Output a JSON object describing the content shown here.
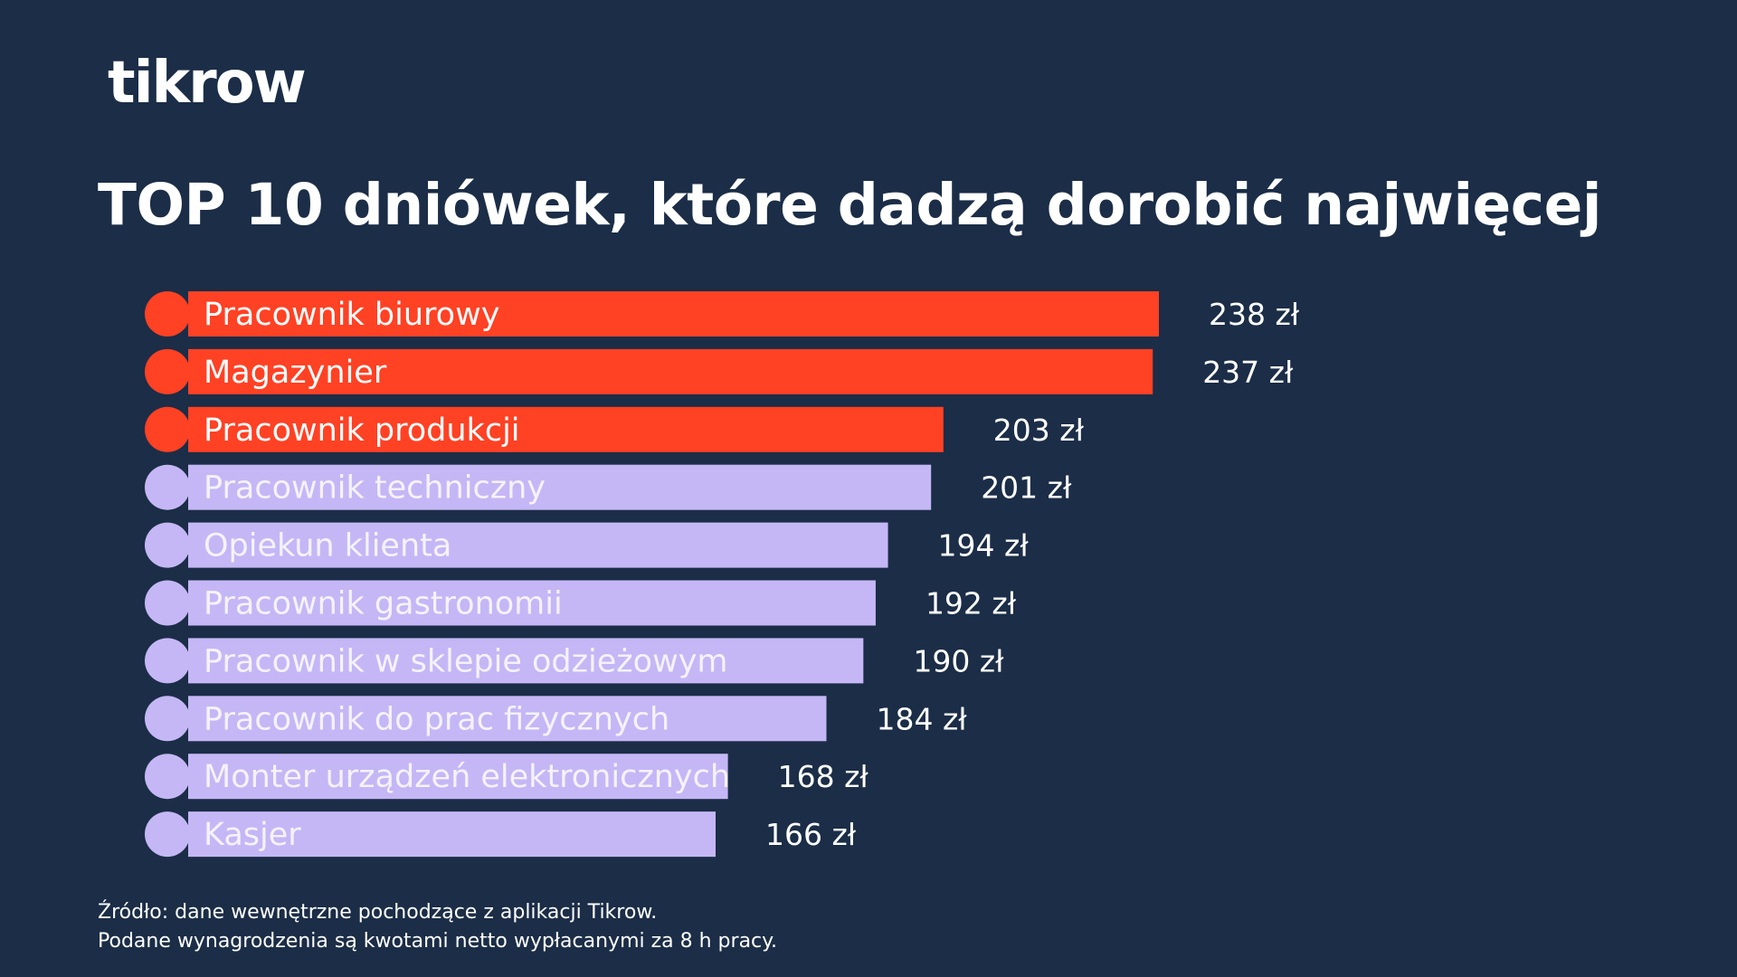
{
  "brand": {
    "logo_text": "tikrow"
  },
  "chart_data": {
    "type": "bar",
    "orientation": "horizontal",
    "title": "TOP 10 dniówek, które dadzą dorobić najwięcej",
    "categories": [
      "Pracownik biurowy",
      "Magazynier",
      "Pracownik produkcji",
      "Pracownik techniczny",
      "Opiekun klienta",
      "Pracownik gastronomii",
      "Pracownik w sklepie odzieżowym",
      "Pracownik do prac fizycznych",
      "Monter urządzeń elektronicznych",
      "Kasjer"
    ],
    "values": [
      238,
      237,
      203,
      201,
      194,
      192,
      190,
      184,
      168,
      166
    ],
    "value_labels": [
      "238 zł",
      "237 zł",
      "203 zł",
      "201 zł",
      "194 zł",
      "192 zł",
      "190 zł",
      "184 zł",
      "168 zł",
      "166 zł"
    ],
    "highlight_top_n": 3,
    "colors": {
      "highlight": "#ff4124",
      "default": "#c5b7f5",
      "highlight_label": "#ffffff",
      "default_label": "#f5f2ff",
      "background": "#1b2d47"
    },
    "legend": "none",
    "grid": false
  },
  "footnote": {
    "line1": "Źródło: dane wewnętrzne pochodzące z aplikacji Tikrow.",
    "line2": "Podane wynagrodzenia są kwotami netto wypłacanymi za 8 h pracy."
  }
}
